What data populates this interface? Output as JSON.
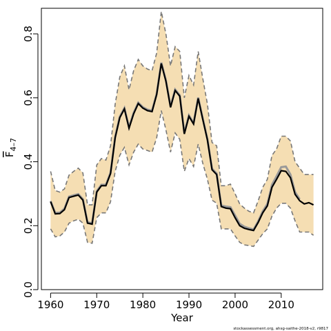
{
  "chart_data": {
    "type": "line",
    "xlabel": "Year",
    "ylabel": "F",
    "ylabel_subscript": "4–7",
    "credit": "stockassessment.org, ahsg-saithe-2018-v2, r9817",
    "xlim": [
      1958,
      2019
    ],
    "ylim": [
      0.0,
      0.88
    ],
    "xticks": [
      1960,
      1970,
      1980,
      1990,
      2000,
      2010
    ],
    "yticks": [
      0.0,
      0.2,
      0.4,
      0.6,
      0.8
    ],
    "ytick_labels": [
      "0.0",
      "0.2",
      "0.4",
      "0.6",
      "0.8"
    ],
    "grid": false,
    "colors": {
      "band": "#f5deb3",
      "estimate": "#000000",
      "previous": "#999999",
      "bounds": "#777777"
    },
    "series": [
      {
        "role": "estimate",
        "x": [
          1960,
          1961,
          1962,
          1963,
          1964,
          1965,
          1966,
          1967,
          1968,
          1969,
          1970,
          1971,
          1972,
          1973,
          1974,
          1975,
          1976,
          1977,
          1978,
          1979,
          1980,
          1981,
          1982,
          1983,
          1984,
          1985,
          1986,
          1987,
          1988,
          1989,
          1990,
          1991,
          1992,
          1993,
          1994,
          1995,
          1996,
          1997,
          1998,
          1999,
          2000,
          2001,
          2002,
          2003,
          2004,
          2005,
          2006,
          2007,
          2008,
          2009,
          2010,
          2011,
          2012,
          2013,
          2014,
          2015,
          2016,
          2017
        ],
        "y": [
          0.275,
          0.237,
          0.238,
          0.25,
          0.288,
          0.292,
          0.296,
          0.28,
          0.208,
          0.205,
          0.305,
          0.325,
          0.325,
          0.363,
          0.475,
          0.538,
          0.565,
          0.505,
          0.55,
          0.582,
          0.568,
          0.56,
          0.557,
          0.61,
          0.707,
          0.652,
          0.57,
          0.623,
          0.605,
          0.487,
          0.542,
          0.518,
          0.598,
          0.532,
          0.468,
          0.375,
          0.36,
          0.26,
          0.255,
          0.253,
          0.225,
          0.2,
          0.192,
          0.188,
          0.185,
          0.21,
          0.24,
          0.262,
          0.32,
          0.345,
          0.372,
          0.37,
          0.35,
          0.298,
          0.278,
          0.268,
          0.272,
          0.265
        ]
      },
      {
        "role": "previous",
        "x": [
          1960,
          1961,
          1962,
          1963,
          1964,
          1965,
          1966,
          1967,
          1968,
          1969,
          1970,
          1971,
          1972,
          1973,
          1974,
          1975,
          1976,
          1977,
          1978,
          1979,
          1980,
          1981,
          1982,
          1983,
          1984,
          1985,
          1986,
          1987,
          1988,
          1989,
          1990,
          1991,
          1992,
          1993,
          1994,
          1995,
          1996,
          1997,
          1998,
          1999,
          2000,
          2001,
          2002,
          2003,
          2004,
          2005,
          2006,
          2007,
          2008,
          2009,
          2010,
          2011,
          2012,
          2013,
          2014
        ],
        "y": [
          0.277,
          0.24,
          0.241,
          0.253,
          0.291,
          0.295,
          0.299,
          0.283,
          0.211,
          0.208,
          0.308,
          0.328,
          0.328,
          0.366,
          0.478,
          0.541,
          0.568,
          0.508,
          0.553,
          0.585,
          0.571,
          0.563,
          0.56,
          0.613,
          0.71,
          0.655,
          0.573,
          0.626,
          0.608,
          0.49,
          0.545,
          0.521,
          0.601,
          0.535,
          0.471,
          0.378,
          0.363,
          0.263,
          0.26,
          0.258,
          0.232,
          0.206,
          0.197,
          0.192,
          0.188,
          0.214,
          0.245,
          0.268,
          0.328,
          0.355,
          0.383,
          0.385,
          0.36,
          0.305,
          0.283
        ]
      },
      {
        "role": "upper",
        "x": [
          1960,
          1961,
          1962,
          1963,
          1964,
          1965,
          1966,
          1967,
          1968,
          1969,
          1970,
          1971,
          1972,
          1973,
          1974,
          1975,
          1976,
          1977,
          1978,
          1979,
          1980,
          1981,
          1982,
          1983,
          1984,
          1985,
          1986,
          1987,
          1988,
          1989,
          1990,
          1991,
          1992,
          1993,
          1994,
          1995,
          1996,
          1997,
          1998,
          1999,
          2000,
          2001,
          2002,
          2003,
          2004,
          2005,
          2006,
          2007,
          2008,
          2009,
          2010,
          2011,
          2012,
          2013,
          2014,
          2015,
          2016,
          2017
        ],
        "y": [
          0.37,
          0.31,
          0.305,
          0.315,
          0.358,
          0.37,
          0.38,
          0.365,
          0.265,
          0.265,
          0.39,
          0.41,
          0.405,
          0.45,
          0.58,
          0.665,
          0.7,
          0.625,
          0.685,
          0.72,
          0.7,
          0.69,
          0.685,
          0.74,
          0.87,
          0.8,
          0.7,
          0.76,
          0.745,
          0.6,
          0.67,
          0.64,
          0.745,
          0.66,
          0.58,
          0.46,
          0.45,
          0.325,
          0.325,
          0.33,
          0.3,
          0.268,
          0.255,
          0.245,
          0.24,
          0.278,
          0.32,
          0.345,
          0.42,
          0.44,
          0.48,
          0.48,
          0.465,
          0.4,
          0.38,
          0.36,
          0.36,
          0.36
        ]
      },
      {
        "role": "lower",
        "x": [
          1960,
          1961,
          1962,
          1963,
          1964,
          1965,
          1966,
          1967,
          1968,
          1969,
          1970,
          1971,
          1972,
          1973,
          1974,
          1975,
          1976,
          1977,
          1978,
          1979,
          1980,
          1981,
          1982,
          1983,
          1984,
          1985,
          1986,
          1987,
          1988,
          1989,
          1990,
          1991,
          1992,
          1993,
          1994,
          1995,
          1996,
          1997,
          1998,
          1999,
          2000,
          2001,
          2002,
          2003,
          2004,
          2005,
          2006,
          2007,
          2008,
          2009,
          2010,
          2011,
          2012,
          2013,
          2014,
          2015,
          2016,
          2017
        ],
        "y": [
          0.19,
          0.165,
          0.168,
          0.18,
          0.208,
          0.215,
          0.22,
          0.208,
          0.148,
          0.145,
          0.225,
          0.24,
          0.24,
          0.275,
          0.37,
          0.42,
          0.445,
          0.39,
          0.43,
          0.455,
          0.44,
          0.435,
          0.43,
          0.475,
          0.56,
          0.5,
          0.43,
          0.49,
          0.47,
          0.37,
          0.41,
          0.385,
          0.455,
          0.395,
          0.345,
          0.28,
          0.27,
          0.19,
          0.19,
          0.19,
          0.168,
          0.148,
          0.14,
          0.138,
          0.135,
          0.155,
          0.175,
          0.19,
          0.23,
          0.255,
          0.27,
          0.27,
          0.255,
          0.215,
          0.18,
          0.18,
          0.18,
          0.17
        ]
      }
    ]
  }
}
